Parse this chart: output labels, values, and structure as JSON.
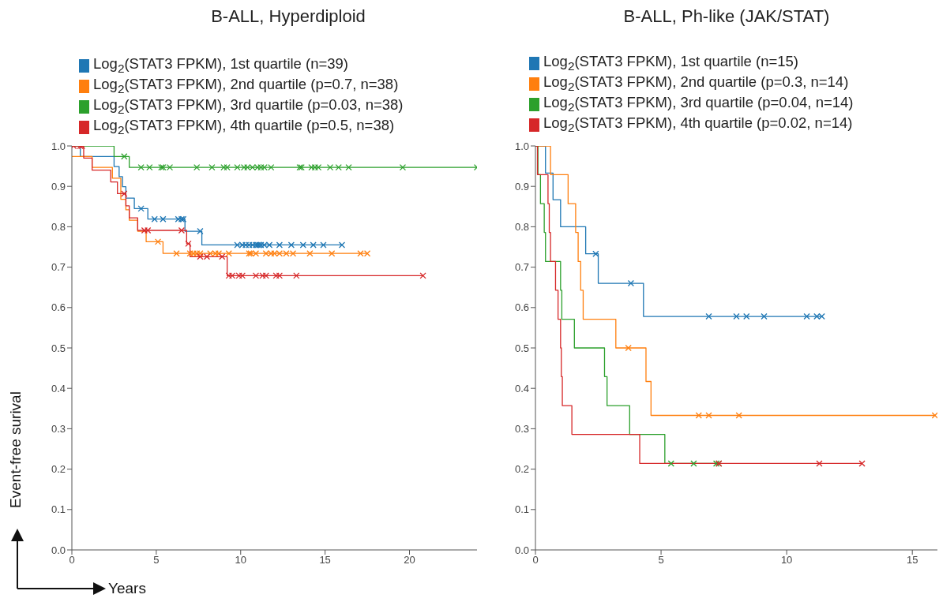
{
  "chart_data": [
    {
      "type": "step",
      "title": "B-ALL, Hyperdiploid",
      "xlabel": "Years",
      "ylabel": "Event-free surival",
      "legend": "top",
      "marker": "none",
      "xlim": [
        0,
        24
      ],
      "xticks": [
        0,
        5,
        10,
        15,
        20
      ],
      "ylim": [
        0,
        1
      ],
      "yticks": [
        {
          "value": 0,
          "label": "0.0"
        },
        {
          "value": 0.1,
          "label": "0.1"
        },
        {
          "value": 0.2,
          "label": "0.2"
        },
        {
          "value": 0.3,
          "label": "0.3"
        },
        {
          "value": 0.4,
          "label": "0.4"
        },
        {
          "value": 0.5,
          "label": "0.5"
        },
        {
          "value": 0.6,
          "label": "0.6"
        },
        {
          "value": 0.7,
          "label": "0.7"
        },
        {
          "value": 0.8,
          "label": "0.8"
        },
        {
          "value": 0.9,
          "label": "0.9"
        },
        {
          "value": 1,
          "label": "1.0"
        }
      ],
      "series": [
        {
          "name": "Log$_{2}$(STAT3 FPKM), 1st quartile (n=39)",
          "color": "#1f77b4",
          "x": [
            0,
            0.5,
            2.5,
            2.8,
            3.0,
            3.2,
            3.7,
            4.5,
            6.7,
            7.7,
            16.0
          ],
          "values": [
            1,
            0.974,
            0.949,
            0.924,
            0.899,
            0.871,
            0.845,
            0.819,
            0.789,
            0.755,
            0.755
          ]
        },
        {
          "name": "Log$_{2}$(STAT3 FPKM), 2nd quartile (p=0.7, n=38)",
          "color": "#ff7f0e",
          "x": [
            0,
            1.2,
            2.4,
            2.9,
            3.2,
            3.4,
            3.9,
            4.4,
            5.4,
            17.5
          ],
          "values": [
            0.974,
            0.947,
            0.92,
            0.868,
            0.842,
            0.816,
            0.789,
            0.763,
            0.734,
            0.734
          ]
        },
        {
          "name": "Log$_{2}$(STAT3 FPKM), 3rd quartile (p=0.03, n=38)",
          "color": "#2ca02c",
          "x": [
            0,
            2.5,
            3.4,
            24.0
          ],
          "values": [
            1,
            0.974,
            0.947,
            0.947
          ]
        },
        {
          "name": "Log$_{2}$(STAT3 FPKM), 4th quartile (p=0.5, n=38)",
          "color": "#d62728",
          "x": [
            0,
            0.7,
            1.2,
            2.3,
            2.7,
            3.2,
            3.4,
            3.9,
            6.8,
            7.0,
            9.2,
            20.8
          ],
          "values": [
            1,
            0.97,
            0.94,
            0.911,
            0.882,
            0.852,
            0.822,
            0.791,
            0.758,
            0.726,
            0.679,
            0.679
          ]
        },
        {
          "type": "scatter",
          "marker": "cross",
          "color": "#1f77b4",
          "x": [
            4.1,
            4.9,
            5.4,
            6.3,
            6.5,
            6.6,
            7.6,
            9.8,
            10.1,
            10.3,
            10.5,
            10.7,
            10.9,
            11.0,
            11.1,
            11.2,
            11.4,
            11.7,
            12.3,
            13.0,
            13.7,
            14.3,
            14.9,
            16.0
          ],
          "values": [
            0.845,
            0.819,
            0.819,
            0.819,
            0.819,
            0.819,
            0.789,
            0.755,
            0.755,
            0.755,
            0.755,
            0.755,
            0.755,
            0.755,
            0.755,
            0.755,
            0.755,
            0.755,
            0.755,
            0.755,
            0.755,
            0.755,
            0.755,
            0.755
          ]
        },
        {
          "type": "scatter",
          "marker": "cross",
          "color": "#ff7f0e",
          "x": [
            5.1,
            6.2,
            7.0,
            7.2,
            7.4,
            7.6,
            8.2,
            8.5,
            8.7,
            9.3,
            10.5,
            10.6,
            10.9,
            11.5,
            11.8,
            12.0,
            12.3,
            12.7,
            13.1,
            14.1,
            15.4,
            17.1,
            17.5
          ],
          "values": [
            0.763,
            0.734,
            0.734,
            0.734,
            0.734,
            0.734,
            0.734,
            0.734,
            0.734,
            0.734,
            0.734,
            0.734,
            0.734,
            0.734,
            0.734,
            0.734,
            0.734,
            0.734,
            0.734,
            0.734,
            0.734,
            0.734,
            0.734
          ]
        },
        {
          "type": "scatter",
          "marker": "cross",
          "color": "#2ca02c",
          "x": [
            3.1,
            4.1,
            4.6,
            5.3,
            5.4,
            5.8,
            7.4,
            8.3,
            9.0,
            9.2,
            9.8,
            10.2,
            10.4,
            10.7,
            11.0,
            11.2,
            11.4,
            11.8,
            13.5,
            13.6,
            14.2,
            14.4,
            14.6,
            15.3,
            15.8,
            16.4,
            19.6,
            24.0
          ],
          "values": [
            0.974,
            0.947,
            0.947,
            0.947,
            0.947,
            0.947,
            0.947,
            0.947,
            0.947,
            0.947,
            0.947,
            0.947,
            0.947,
            0.947,
            0.947,
            0.947,
            0.947,
            0.947,
            0.947,
            0.947,
            0.947,
            0.947,
            0.947,
            0.947,
            0.947,
            0.947,
            0.947,
            0.947
          ]
        },
        {
          "type": "scatter",
          "marker": "cross",
          "color": "#d62728",
          "x": [
            0.1,
            0.5,
            0.6,
            3.1,
            4.3,
            4.5,
            6.5,
            6.9,
            7.6,
            8.0,
            8.9,
            9.3,
            9.5,
            9.9,
            10.1,
            10.9,
            11.3,
            11.5,
            12.1,
            12.3,
            13.3,
            20.8
          ],
          "values": [
            1,
            1,
            1,
            0.882,
            0.791,
            0.791,
            0.791,
            0.758,
            0.726,
            0.726,
            0.726,
            0.679,
            0.679,
            0.679,
            0.679,
            0.679,
            0.679,
            0.679,
            0.679,
            0.679,
            0.679,
            0.679
          ]
        }
      ]
    },
    {
      "type": "step",
      "title": "B-ALL, Ph-like (JAK/STAT)",
      "legend": "top",
      "marker": "none",
      "xlim": [
        0,
        16
      ],
      "xticks": [
        0,
        5,
        10,
        15
      ],
      "ylim": [
        0,
        1
      ],
      "yticks": [
        {
          "value": 0,
          "label": "0.0"
        },
        {
          "value": 0.1,
          "label": "0.1"
        },
        {
          "value": 0.2,
          "label": "0.2"
        },
        {
          "value": 0.3,
          "label": "0.3"
        },
        {
          "value": 0.4,
          "label": "0.4"
        },
        {
          "value": 0.5,
          "label": "0.5"
        },
        {
          "value": 0.6,
          "label": "0.6"
        },
        {
          "value": 0.7,
          "label": "0.7"
        },
        {
          "value": 0.8,
          "label": "0.8"
        },
        {
          "value": 0.9,
          "label": "0.9"
        },
        {
          "value": 1,
          "label": "1.0"
        }
      ],
      "series": [
        {
          "name": "Log$_{2}$(STAT3 FPKM), 1st quartile (n=15)",
          "color": "#1f77b4",
          "x": [
            0,
            0.4,
            0.7,
            1.0,
            2.0,
            2.5,
            4.3,
            11.4
          ],
          "values": [
            1,
            0.933,
            0.867,
            0.8,
            0.733,
            0.66,
            0.578,
            0.578
          ]
        },
        {
          "name": "Log$_{2}$(STAT3 FPKM), 2nd quartile (p=0.3, n=14)",
          "color": "#ff7f0e",
          "x": [
            0,
            0.6,
            1.3,
            1.6,
            1.7,
            1.8,
            1.9,
            3.2,
            4.4,
            4.6,
            15.9
          ],
          "values": [
            1,
            0.929,
            0.857,
            0.786,
            0.714,
            0.643,
            0.571,
            0.5,
            0.417,
            0.333,
            0.333
          ]
        },
        {
          "name": "Log$_{2}$(STAT3 FPKM), 3rd quartile (p=0.04, n=14)",
          "color": "#2ca02c",
          "x": [
            0,
            0.1,
            0.2,
            0.35,
            0.4,
            1.0,
            1.05,
            1.55,
            2.75,
            2.85,
            3.75,
            5.15,
            7.3
          ],
          "values": [
            1,
            0.929,
            0.857,
            0.786,
            0.714,
            0.643,
            0.571,
            0.5,
            0.429,
            0.357,
            0.286,
            0.214,
            0.214
          ]
        },
        {
          "name": "Log$_{2}$(STAT3 FPKM), 4th quartile (p=0.02, n=14)",
          "color": "#d62728",
          "x": [
            0,
            0.08,
            0.5,
            0.55,
            0.6,
            0.8,
            0.9,
            1.0,
            1.03,
            1.07,
            1.45,
            4.15,
            13.0
          ],
          "values": [
            1,
            0.929,
            0.857,
            0.786,
            0.714,
            0.643,
            0.571,
            0.5,
            0.429,
            0.357,
            0.286,
            0.214,
            0.214
          ]
        },
        {
          "type": "scatter",
          "marker": "cross",
          "color": "#1f77b4",
          "x": [
            2.4,
            3.8,
            6.9,
            8.0,
            8.4,
            9.1,
            10.8,
            11.2,
            11.4
          ],
          "values": [
            0.733,
            0.66,
            0.578,
            0.578,
            0.578,
            0.578,
            0.578,
            0.578,
            0.578
          ]
        },
        {
          "type": "scatter",
          "marker": "cross",
          "color": "#ff7f0e",
          "x": [
            3.7,
            6.5,
            6.9,
            8.1,
            15.9
          ],
          "values": [
            0.5,
            0.333,
            0.333,
            0.333,
            0.333
          ]
        },
        {
          "type": "scatter",
          "marker": "cross",
          "color": "#2ca02c",
          "x": [
            5.4,
            6.3,
            7.2,
            7.3
          ],
          "values": [
            0.214,
            0.214,
            0.214,
            0.214
          ]
        },
        {
          "type": "scatter",
          "marker": "cross",
          "color": "#d62728",
          "x": [
            7.3,
            11.3,
            13.0
          ],
          "values": [
            0.214,
            0.214,
            0.214
          ]
        }
      ]
    }
  ]
}
